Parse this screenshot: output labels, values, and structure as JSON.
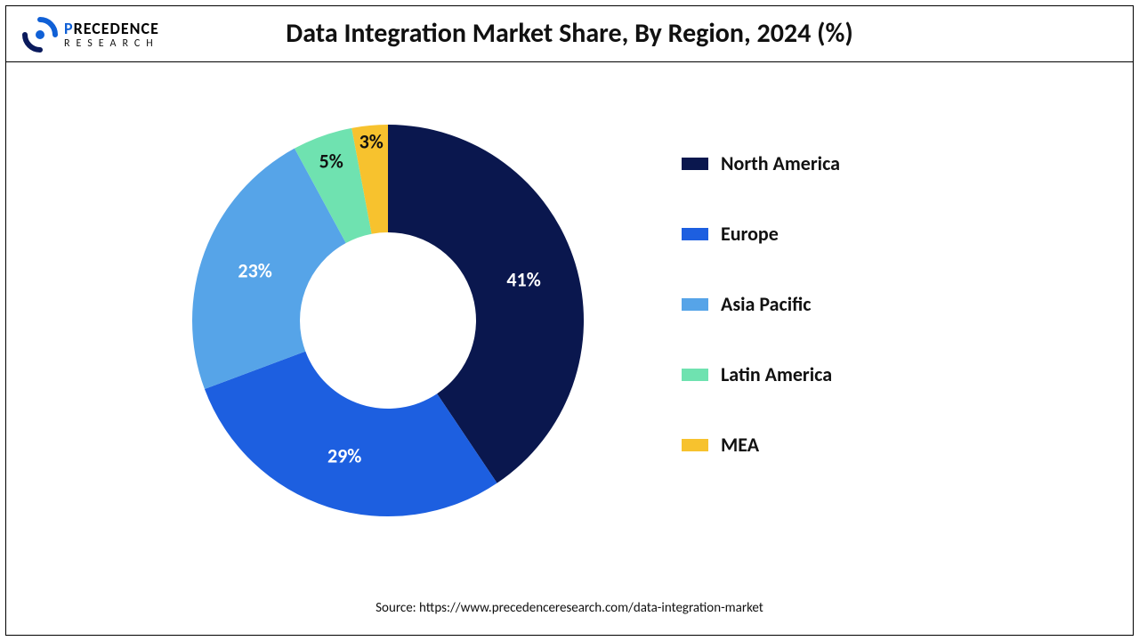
{
  "logo": {
    "topLine": "Precedence",
    "bottomLine": "RESEARCH",
    "accentColor": "#1060d6",
    "arcTopColor": "#1060d6",
    "arcBottomColor": "#0a1a5c"
  },
  "title": "Data Integration Market Share, By Region, 2024 (%)",
  "chart": {
    "type": "donut",
    "innerRadiusRatio": 0.45,
    "startAngleDeg": 0,
    "background": "#ffffff",
    "labelFontSize": 22,
    "segments": [
      {
        "name": "North America",
        "value": 41,
        "color": "#0a174e",
        "labelColor": "#ffffff"
      },
      {
        "name": "Europe",
        "value": 29,
        "color": "#1d5fe0",
        "labelColor": "#ffffff"
      },
      {
        "name": "Asia Pacific",
        "value": 23,
        "color": "#56a4e8",
        "labelColor": "#ffffff"
      },
      {
        "name": "Latin America",
        "value": 5,
        "color": "#6fe2b0",
        "labelColor": "#111111"
      },
      {
        "name": "MEA",
        "value": 3,
        "color": "#f7c22e",
        "labelColor": "#111111"
      }
    ]
  },
  "legend": {
    "fontSize": 22,
    "fontWeight": 700,
    "textColor": "#111111"
  },
  "source": "Source: https://www.precedenceresearch.com/data-integration-market"
}
